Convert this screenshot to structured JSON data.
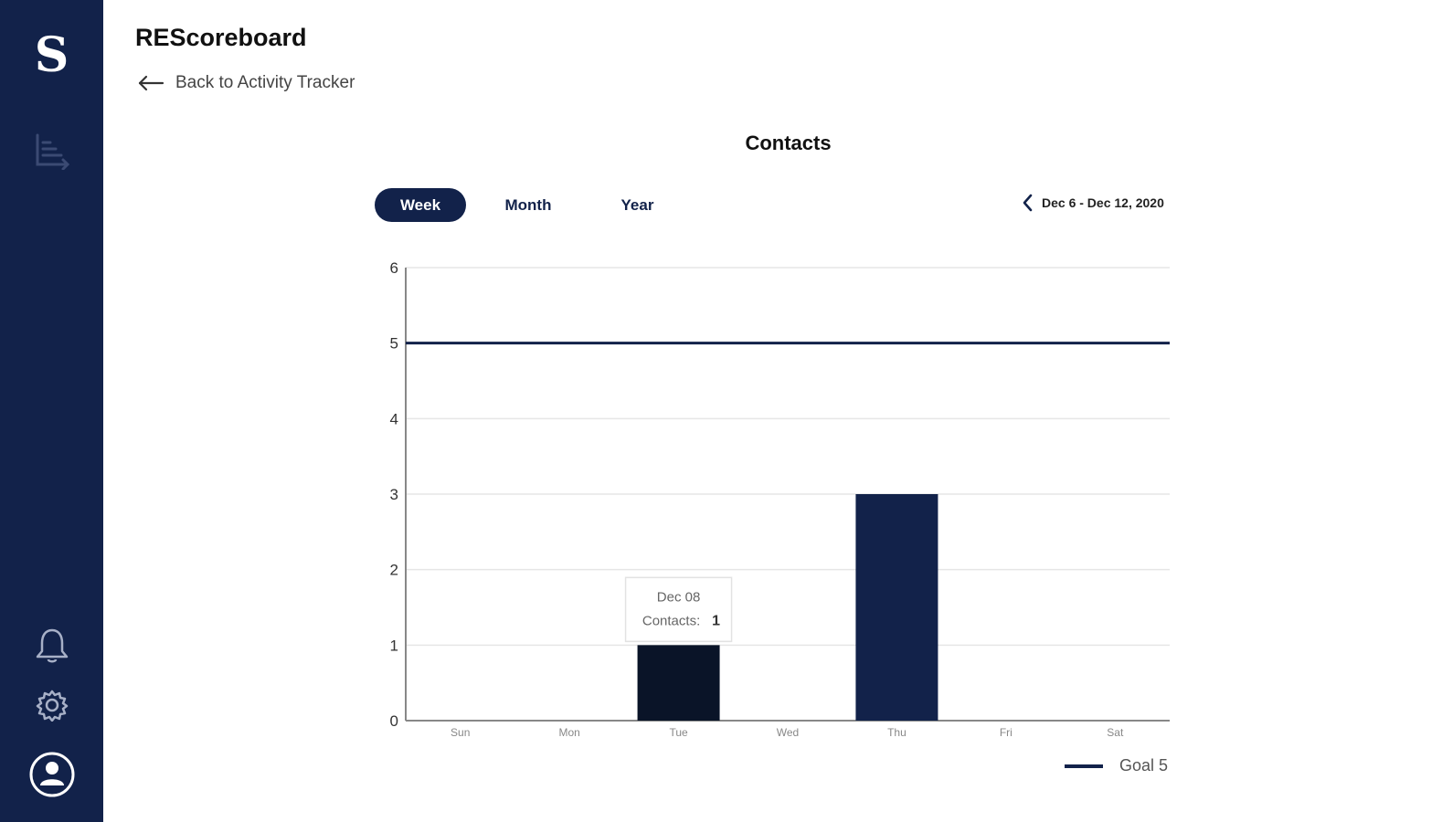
{
  "app": {
    "logo": "S",
    "title": "REScoreboard"
  },
  "back_link": {
    "label": "Back to Activity Tracker"
  },
  "sidebar": {
    "items": [
      {
        "icon": "chart-icon"
      },
      {
        "icon": "bell-icon"
      },
      {
        "icon": "gear-icon"
      },
      {
        "icon": "user-avatar-icon"
      }
    ]
  },
  "chart_title": "Contacts",
  "tabs": [
    {
      "label": "Week",
      "active": true
    },
    {
      "label": "Month",
      "active": false
    },
    {
      "label": "Year",
      "active": false
    }
  ],
  "date_range": {
    "label": "Dec 6 - Dec 12, 2020"
  },
  "tooltip": {
    "date": "Dec 08",
    "label": "Contacts:",
    "value": "1"
  },
  "legend": {
    "label": "Goal 5"
  },
  "colors": {
    "primary": "#12224a",
    "highlight_bar": "#0a1428",
    "grid": "#e6e6e6"
  },
  "chart_data": {
    "type": "bar",
    "title": "Contacts",
    "categories": [
      "Sun",
      "Mon",
      "Tue",
      "Wed",
      "Thu",
      "Fri",
      "Sat"
    ],
    "values": [
      0,
      0,
      1,
      0,
      3,
      0,
      0
    ],
    "ylim": [
      0,
      6
    ],
    "yticks": [
      "0",
      "1",
      "2",
      "3",
      "4",
      "5",
      "6"
    ],
    "goal": 5,
    "grid": true,
    "legend_position": "bottom-right",
    "highlighted_category": "Tue"
  }
}
